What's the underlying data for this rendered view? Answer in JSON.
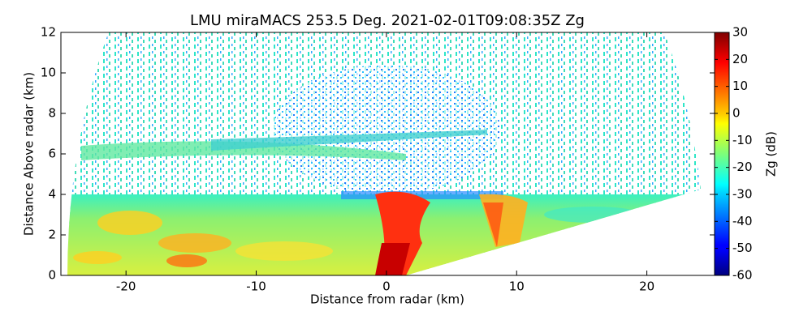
{
  "chart_data": {
    "type": "rhi",
    "title": "LMU miraMACS 253.5 Deg. 2021-02-01T09:08:35Z  Zg",
    "xlabel": "Distance from radar (km)",
    "ylabel": "Distance Above radar  (km)",
    "xlim": [
      -25,
      25.2
    ],
    "xticks": [
      -20,
      -10,
      0,
      10,
      20
    ],
    "ylim": [
      0,
      12
    ],
    "yticks": [
      0,
      2,
      4,
      6,
      8,
      10,
      12
    ],
    "colormap": "jet",
    "colorbar": {
      "label": "Zg (dB)",
      "lim": [
        -60,
        30
      ],
      "ticks": [
        -60,
        -50,
        -40,
        -30,
        -20,
        -10,
        0,
        10,
        20,
        30
      ]
    }
  }
}
